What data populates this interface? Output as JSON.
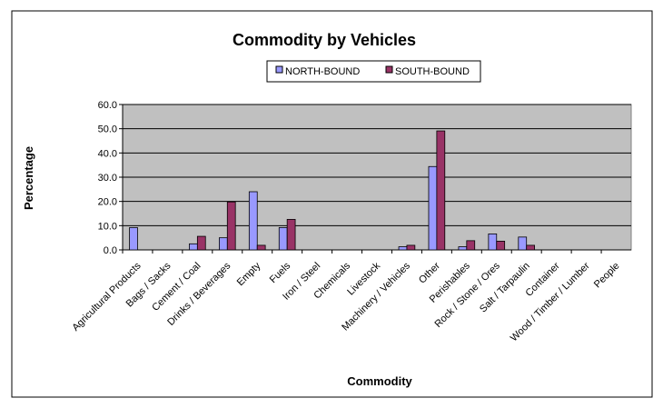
{
  "chart_data": {
    "type": "bar",
    "title": "Commodity by Vehicles",
    "xlabel": "Commodity",
    "ylabel": "Percentage",
    "ylim": [
      0,
      60
    ],
    "yticks": [
      "0.0",
      "10.0",
      "20.0",
      "30.0",
      "40.0",
      "50.0",
      "60.0"
    ],
    "grid": true,
    "legend_position": "top",
    "plot_background": "#c0c0c0",
    "categories": [
      "Agricultural Products",
      "Bags / Sacks",
      "Cement / Coal",
      "Drinks / Beverages",
      "Empty",
      "Fuels",
      "Iron / Steel",
      "Chemicals",
      "Livestock",
      "Machinery / Vehicles",
      "Other",
      "Perishables",
      "Rock / Stone / Ores",
      "Salt / Tarpaulin",
      "Container",
      "Wood / Timber / Lumber",
      "People"
    ],
    "series": [
      {
        "name": "NORTH-BOUND",
        "color": "#9999ff",
        "values": [
          9.2,
          0,
          2.5,
          5.0,
          24.0,
          9.2,
          0,
          0,
          0,
          1.3,
          34.4,
          1.3,
          6.6,
          5.3,
          0,
          0,
          0
        ]
      },
      {
        "name": "SOUTH-BOUND",
        "color": "#993366",
        "values": [
          0,
          0,
          5.6,
          19.8,
          1.9,
          12.6,
          0,
          0,
          0,
          1.9,
          49.1,
          3.8,
          3.6,
          1.9,
          0,
          0,
          0
        ]
      }
    ]
  }
}
